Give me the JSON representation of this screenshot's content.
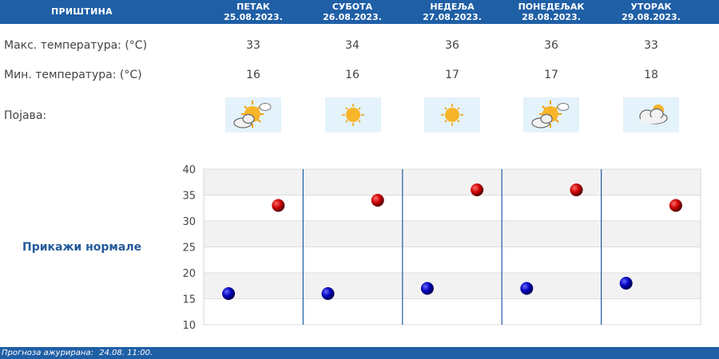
{
  "header": {
    "city": "ПРИШТИНА",
    "days": [
      {
        "name": "ПЕТАК",
        "date": "25.08.2023."
      },
      {
        "name": "СУБОТА",
        "date": "26.08.2023."
      },
      {
        "name": "НЕДЕЉА",
        "date": "27.08.2023."
      },
      {
        "name": "ПОНЕДЕЉАК",
        "date": "28.08.2023."
      },
      {
        "name": "УТОРАК",
        "date": "29.08.2023."
      }
    ]
  },
  "rows": {
    "max_label": "Макс. температура: (°C)",
    "min_label": "Мин. температура: (°C)",
    "phenomenon_label": "Појава:",
    "max_values": [
      "33",
      "34",
      "36",
      "36",
      "33"
    ],
    "min_values": [
      "16",
      "16",
      "17",
      "17",
      "18"
    ],
    "icons": [
      "sun-behind-cloud-icon",
      "sun-icon",
      "sun-icon",
      "sun-behind-cloud-icon",
      "cloudy-icon"
    ]
  },
  "normals_label": "Прикажи нормале",
  "footer": {
    "label": "Прогноза ажурирана:",
    "value": "24.08. 11:00."
  },
  "colors": {
    "header_bg": "#1f5fa6",
    "max_marker": "#cc0000",
    "min_marker": "#0000bb"
  },
  "chart_data": {
    "type": "scatter",
    "categories": [
      "25.08.2023.",
      "26.08.2023.",
      "27.08.2023.",
      "28.08.2023.",
      "29.08.2023."
    ],
    "series": [
      {
        "values": [
          33,
          34,
          36,
          36,
          33
        ]
      },
      {
        "values": [
          16,
          16,
          17,
          17,
          18
        ]
      }
    ],
    "ylim": [
      10,
      40
    ],
    "yticks": [
      "10",
      "15",
      "20",
      "25",
      "30",
      "35",
      "40"
    ],
    "grid": true
  }
}
